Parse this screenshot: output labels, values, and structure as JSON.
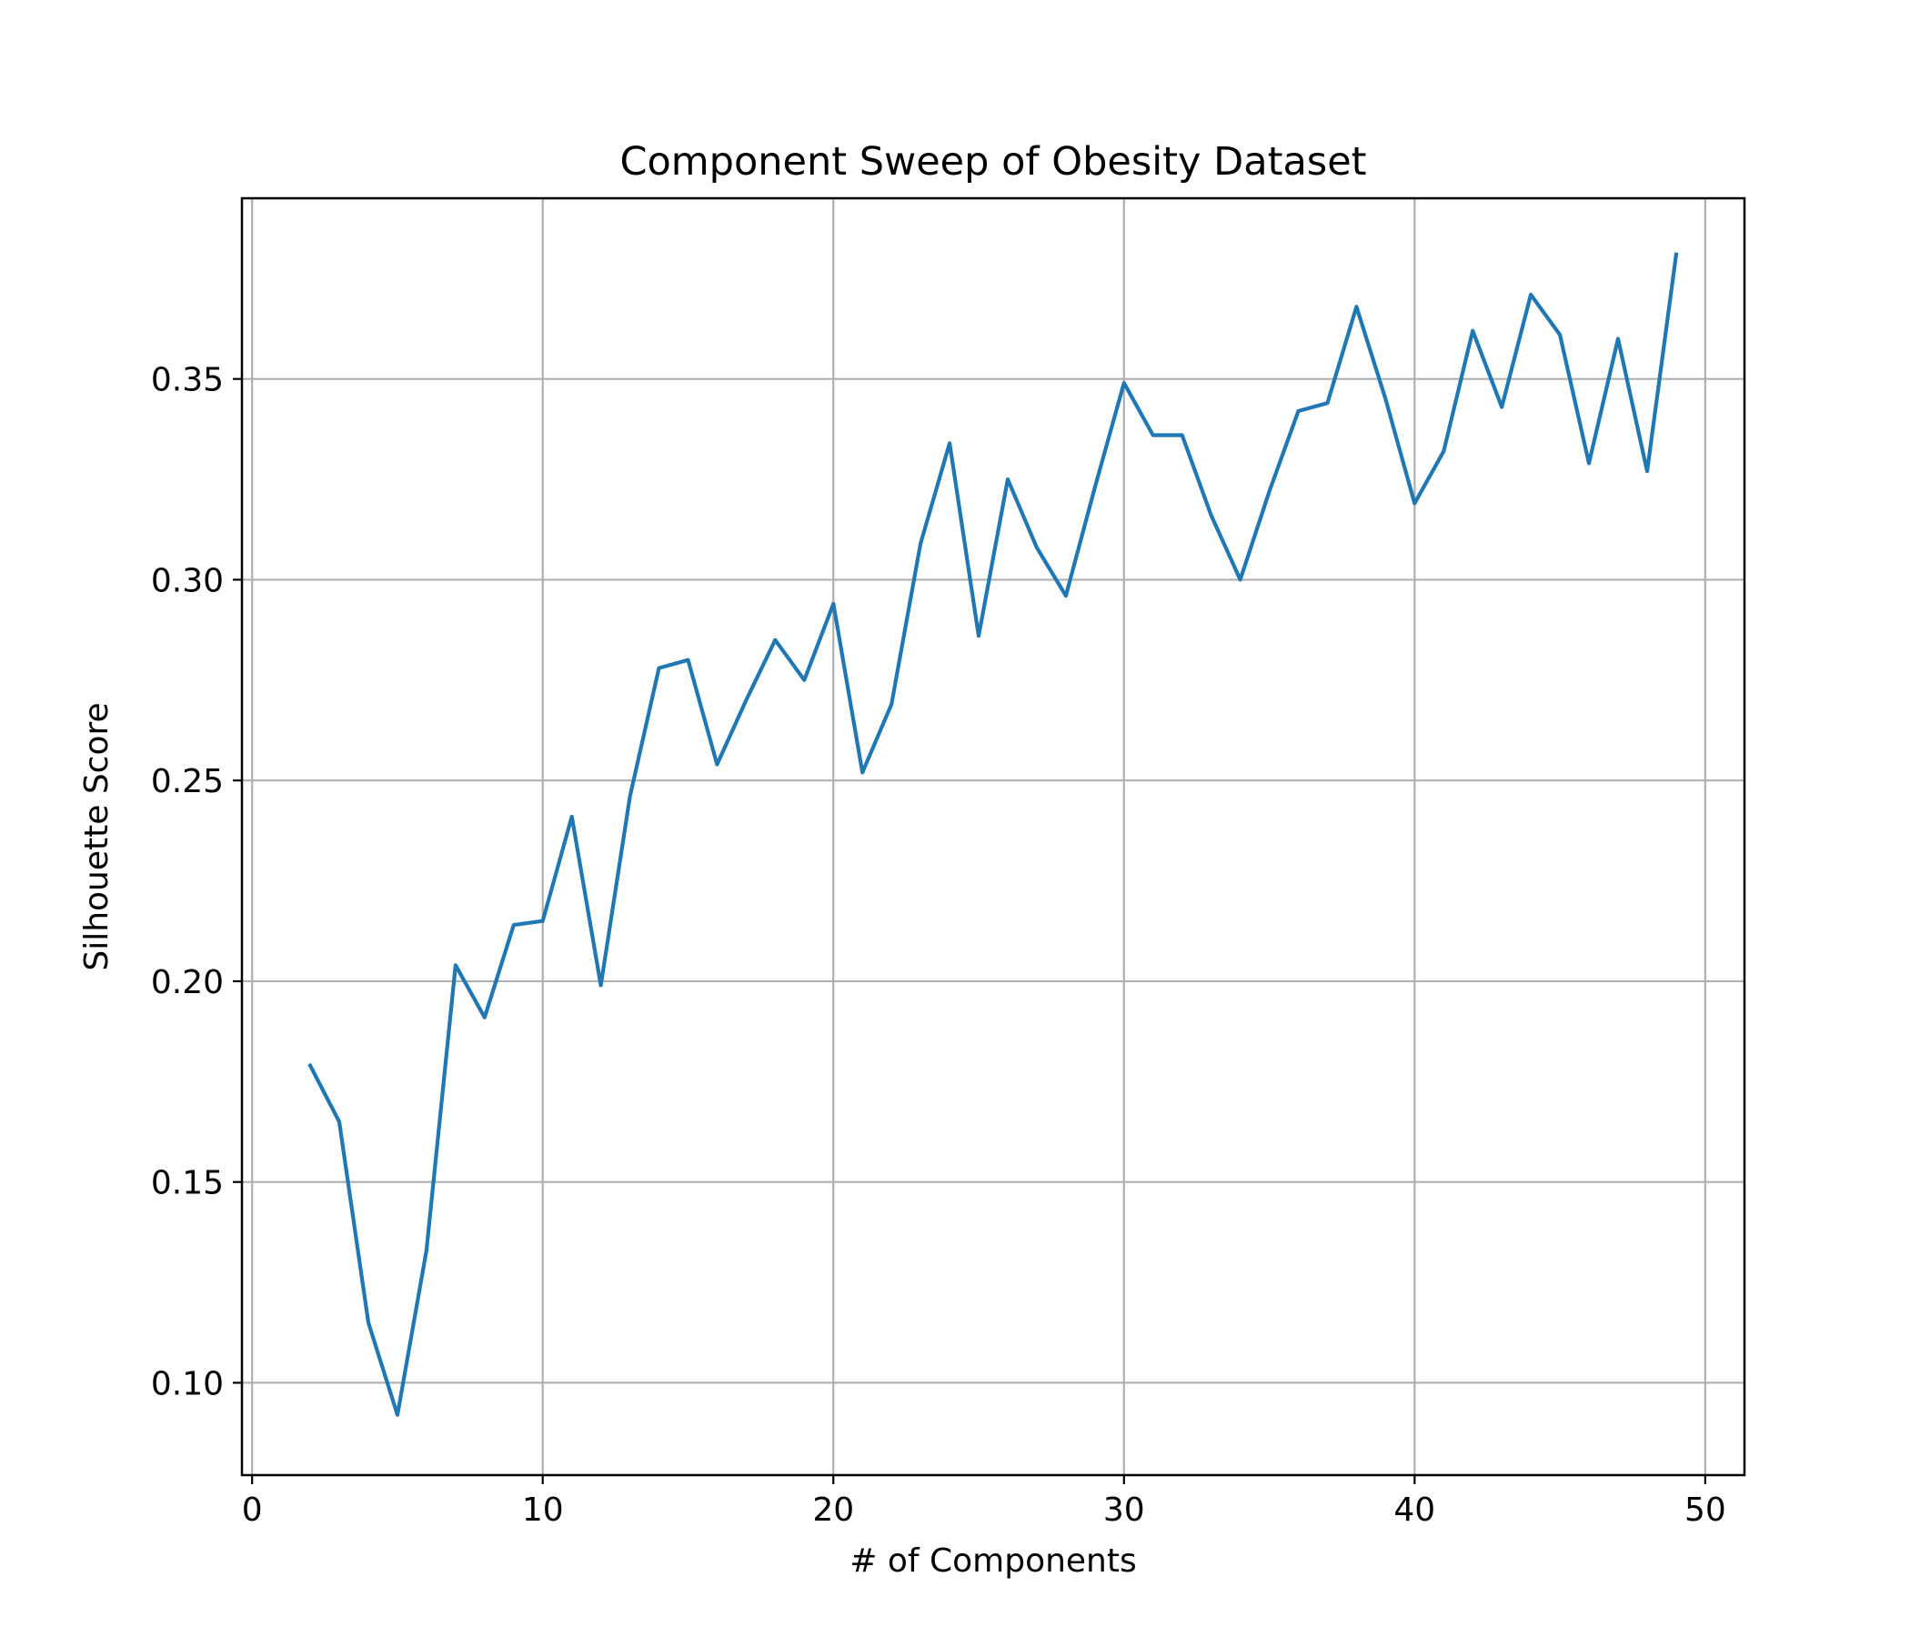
{
  "chart_data": {
    "type": "line",
    "title": "Component Sweep of Obesity Dataset",
    "xlabel": "# of Components",
    "ylabel": "Silhouette Score",
    "xlim": [
      -0.35,
      51.35
    ],
    "ylim": [
      0.077,
      0.395
    ],
    "xticks": [
      0,
      10,
      20,
      30,
      40,
      50
    ],
    "xtick_labels": [
      "0",
      "10",
      "20",
      "30",
      "40",
      "50"
    ],
    "yticks": [
      0.1,
      0.15,
      0.2,
      0.25,
      0.3,
      0.35
    ],
    "ytick_labels": [
      "0.10",
      "0.15",
      "0.20",
      "0.25",
      "0.30",
      "0.35"
    ],
    "grid": true,
    "legend": "none",
    "line_color": "#1f77b4",
    "grid_color": "#b0b0b0",
    "series": [
      {
        "x": [
          2,
          3,
          4,
          5,
          6,
          7,
          8,
          9,
          10,
          11,
          12,
          13,
          14,
          15,
          16,
          17,
          18,
          19,
          20,
          21,
          22,
          23,
          24,
          25,
          26,
          27,
          28,
          29,
          30,
          31,
          32,
          33,
          34,
          35,
          36,
          37,
          38,
          39,
          40,
          41,
          42,
          43,
          44,
          45,
          46,
          47,
          48,
          49
        ],
        "values": [
          0.179,
          0.165,
          0.115,
          0.092,
          0.133,
          0.204,
          0.191,
          0.214,
          0.215,
          0.241,
          0.199,
          0.246,
          0.278,
          0.28,
          0.254,
          0.27,
          0.285,
          0.275,
          0.294,
          0.252,
          0.269,
          0.309,
          0.334,
          0.286,
          0.325,
          0.308,
          0.296,
          0.323,
          0.349,
          0.336,
          0.336,
          0.316,
          0.3,
          0.322,
          0.342,
          0.344,
          0.368,
          0.345,
          0.319,
          0.332,
          0.362,
          0.343,
          0.371,
          0.361,
          0.329,
          0.36,
          0.327,
          0.381
        ]
      }
    ]
  }
}
